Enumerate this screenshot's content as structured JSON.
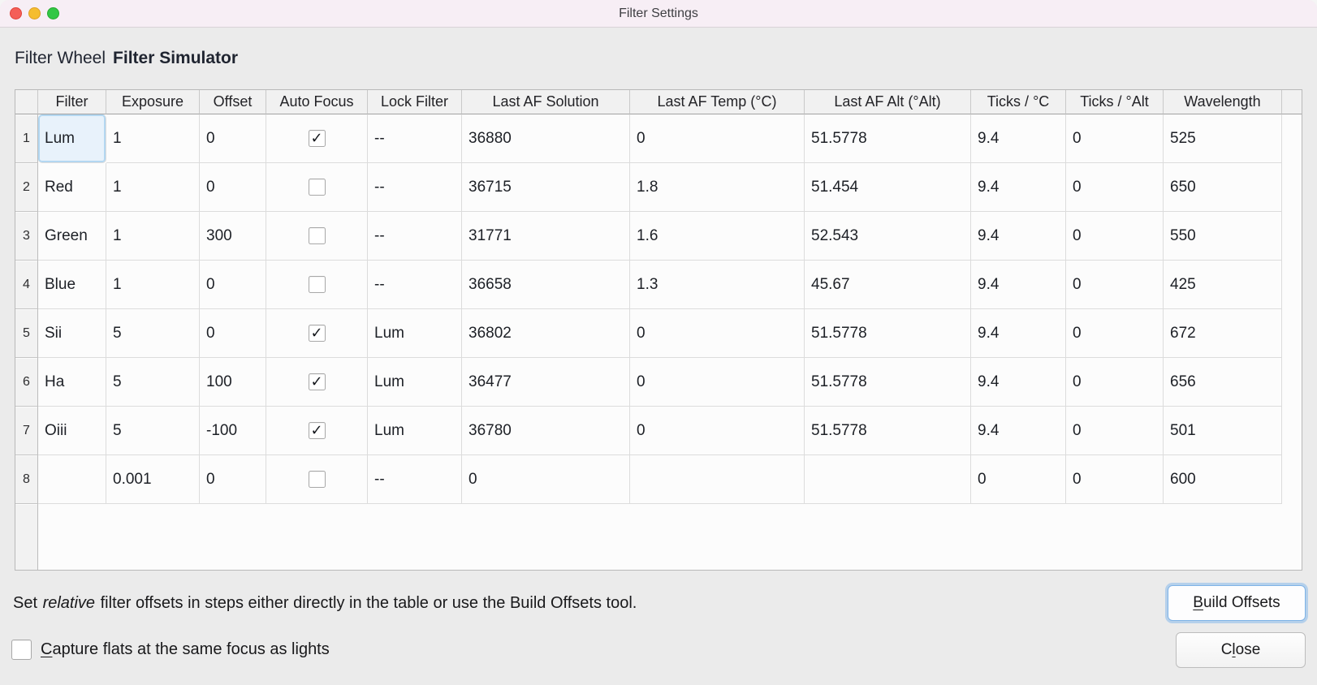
{
  "window": {
    "title": "Filter Settings"
  },
  "header": {
    "label": "Filter Wheel",
    "device_name": "Filter Simulator"
  },
  "table": {
    "columns": [
      "Filter",
      "Exposure",
      "Offset",
      "Auto Focus",
      "Lock Filter",
      "Last AF Solution",
      "Last AF Temp (°C)",
      "Last AF Alt (°Alt)",
      "Ticks / °C",
      "Ticks / °Alt",
      "Wavelength"
    ],
    "fields": [
      "filter",
      "exposure",
      "offset",
      "auto_focus",
      "lock_filter",
      "last_af_solution",
      "last_af_temp",
      "last_af_alt",
      "ticks_per_c",
      "ticks_per_alt",
      "wavelength"
    ],
    "selection": {
      "row": 0,
      "field": "filter"
    },
    "rows": [
      {
        "num": "1",
        "filter": "Lum",
        "exposure": "1",
        "offset": "0",
        "auto_focus": true,
        "lock_filter": "--",
        "last_af_solution": "36880",
        "last_af_temp": "0",
        "last_af_alt": "51.5778",
        "ticks_per_c": "9.4",
        "ticks_per_alt": "0",
        "wavelength": "525"
      },
      {
        "num": "2",
        "filter": "Red",
        "exposure": "1",
        "offset": "0",
        "auto_focus": false,
        "lock_filter": "--",
        "last_af_solution": "36715",
        "last_af_temp": "1.8",
        "last_af_alt": "51.454",
        "ticks_per_c": "9.4",
        "ticks_per_alt": "0",
        "wavelength": "650"
      },
      {
        "num": "3",
        "filter": "Green",
        "exposure": "1",
        "offset": "300",
        "auto_focus": false,
        "lock_filter": "--",
        "last_af_solution": "31771",
        "last_af_temp": "1.6",
        "last_af_alt": "52.543",
        "ticks_per_c": "9.4",
        "ticks_per_alt": "0",
        "wavelength": "550"
      },
      {
        "num": "4",
        "filter": "Blue",
        "exposure": "1",
        "offset": "0",
        "auto_focus": false,
        "lock_filter": "--",
        "last_af_solution": "36658",
        "last_af_temp": "1.3",
        "last_af_alt": "45.67",
        "ticks_per_c": "9.4",
        "ticks_per_alt": "0",
        "wavelength": "425"
      },
      {
        "num": "5",
        "filter": "Sii",
        "exposure": "5",
        "offset": "0",
        "auto_focus": true,
        "lock_filter": "Lum",
        "last_af_solution": "36802",
        "last_af_temp": "0",
        "last_af_alt": "51.5778",
        "ticks_per_c": "9.4",
        "ticks_per_alt": "0",
        "wavelength": "672"
      },
      {
        "num": "6",
        "filter": "Ha",
        "exposure": "5",
        "offset": "100",
        "auto_focus": true,
        "lock_filter": "Lum",
        "last_af_solution": "36477",
        "last_af_temp": "0",
        "last_af_alt": "51.5778",
        "ticks_per_c": "9.4",
        "ticks_per_alt": "0",
        "wavelength": "656"
      },
      {
        "num": "7",
        "filter": "Oiii",
        "exposure": "5",
        "offset": "-100",
        "auto_focus": true,
        "lock_filter": "Lum",
        "last_af_solution": "36780",
        "last_af_temp": "0",
        "last_af_alt": "51.5778",
        "ticks_per_c": "9.4",
        "ticks_per_alt": "0",
        "wavelength": "501"
      },
      {
        "num": "8",
        "filter": "",
        "exposure": "0.001",
        "offset": "0",
        "auto_focus": false,
        "lock_filter": "--",
        "last_af_solution": "0",
        "last_af_temp": "",
        "last_af_alt": "",
        "ticks_per_c": "0",
        "ticks_per_alt": "0",
        "wavelength": "600"
      }
    ]
  },
  "footer": {
    "instruction": {
      "prefix": "Set ",
      "italic": "relative",
      "suffix": " filter offsets in steps either directly in the table or use the Build Offsets tool."
    },
    "build_offsets_button": {
      "mnemonic": "B",
      "rest": "uild Offsets"
    },
    "capture_flats_checkbox": {
      "checked": false,
      "label_mnemonic": "C",
      "label_rest": "apture flats at the same focus as lights"
    },
    "close_button": {
      "pre": "C",
      "mnemonic": "l",
      "rest": "ose"
    }
  },
  "colors": {
    "titlebar": "#f7eef5",
    "window_bg": "#ebebeb",
    "selection_bg": "#e8f2fb",
    "selection_border": "#b3d7f1",
    "focus_ring": "#7fb3e6",
    "traffic_red": "#f45f58",
    "traffic_yellow": "#f5bd2f",
    "traffic_green": "#32c745"
  }
}
